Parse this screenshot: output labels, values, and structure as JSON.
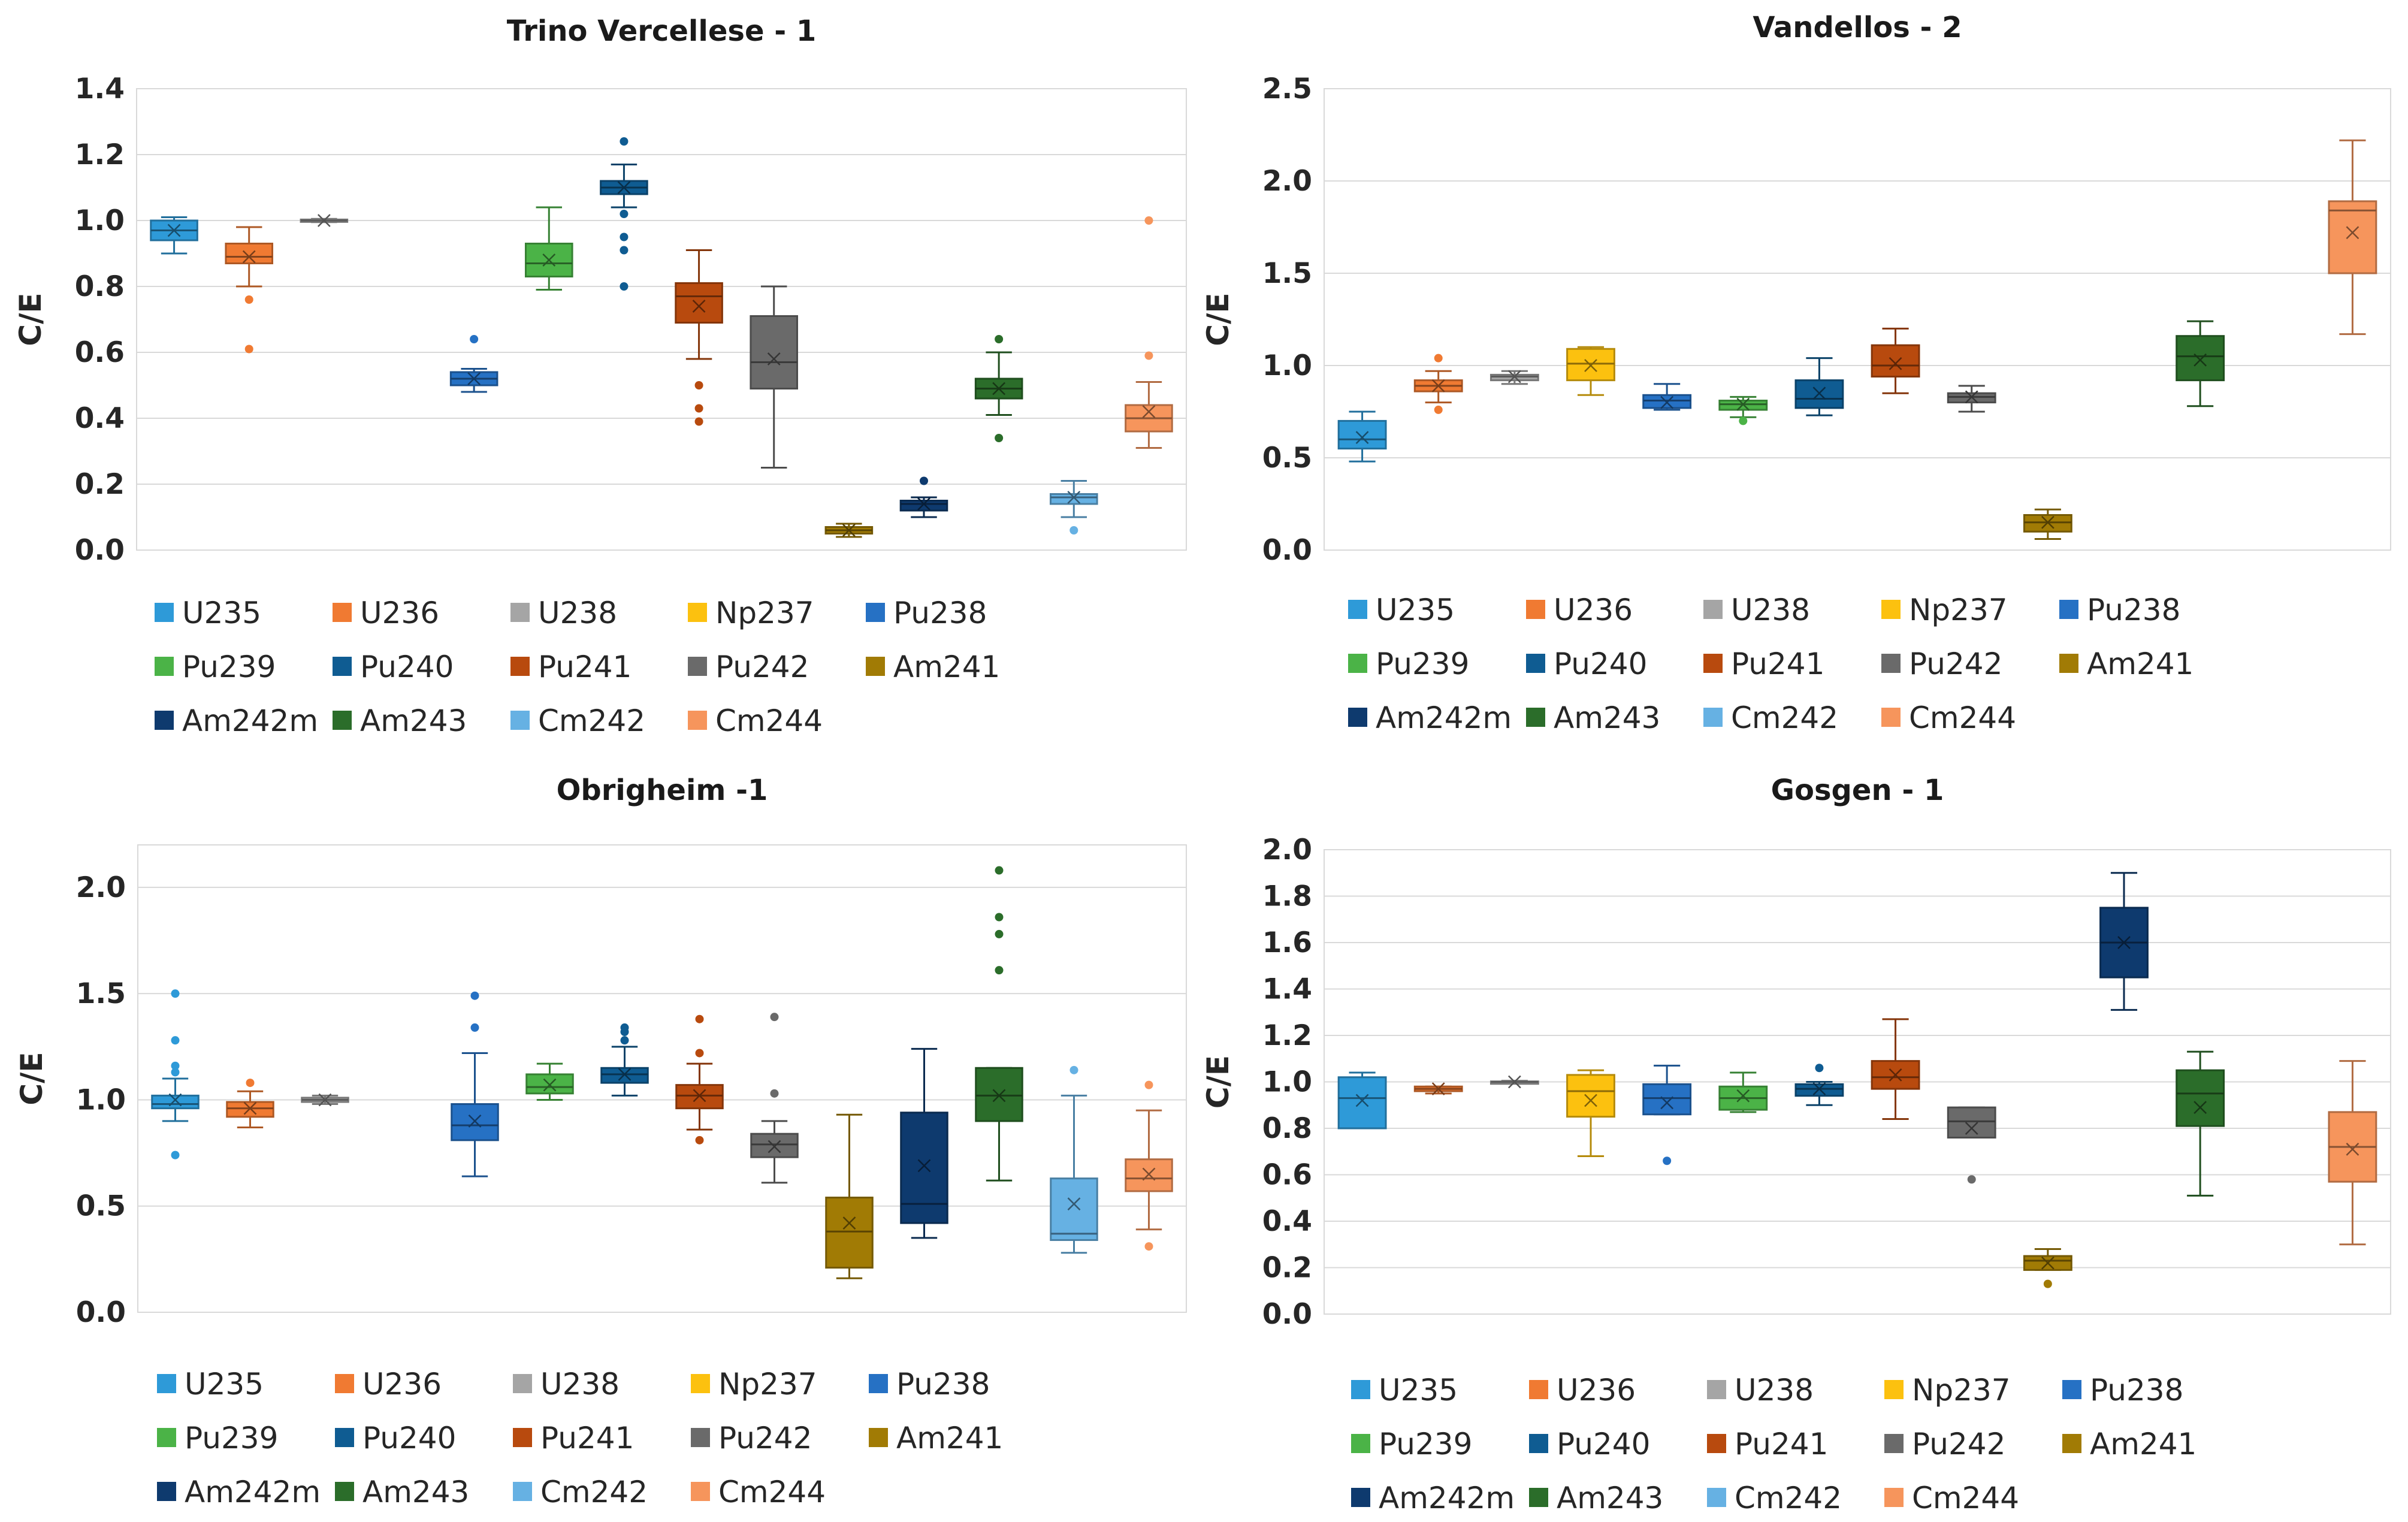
{
  "colors": {
    "U235": "#2e9ad8",
    "U236": "#f07a32",
    "U238": "#a5a5a5",
    "Np237": "#fcc10f",
    "Pu238": "#2671c4",
    "Pu239": "#4bb347",
    "Pu240": "#0f5c92",
    "Pu241": "#b84a0e",
    "Pu242": "#6a6a6a",
    "Am241": "#a17b05",
    "Am242m": "#0e3a6e",
    "Am243": "#2b6d2a",
    "Cm242": "#66b1e3",
    "Cm244": "#f6955c"
  },
  "chart_data": [
    {
      "type": "box",
      "title": "Trino Vercellese - 1",
      "ylabel": "C/E",
      "ylim": [
        0,
        1.4
      ],
      "yticks": [
        "0.0",
        "0.2",
        "0.4",
        "0.6",
        "0.8",
        "1.0",
        "1.2",
        "1.4"
      ],
      "tickvals": [
        0,
        0.2,
        0.4,
        0.6,
        0.8,
        1.0,
        1.2,
        1.4
      ],
      "categories": [
        "U235",
        "U236",
        "U238",
        "Np237",
        "Pu238",
        "Pu239",
        "Pu240",
        "Pu241",
        "Pu242",
        "Am241",
        "Am242m",
        "Am243",
        "Cm242",
        "Cm244"
      ],
      "legend": [
        "U235",
        "U236",
        "U238",
        "Np237",
        "Pu238",
        "Pu239",
        "Pu240",
        "Pu241",
        "Pu242",
        "Am241",
        "Am242m",
        "Am243",
        "Cm242",
        "Cm244"
      ],
      "boxes": [
        {
          "name": "U235",
          "min": 0.9,
          "q1": 0.94,
          "median": 0.97,
          "q3": 1.0,
          "max": 1.01,
          "mean": 0.97,
          "outliers": []
        },
        {
          "name": "U236",
          "min": 0.8,
          "q1": 0.87,
          "median": 0.89,
          "q3": 0.93,
          "max": 0.98,
          "mean": 0.89,
          "outliers": [
            0.76,
            0.61
          ]
        },
        {
          "name": "U238",
          "min": 0.995,
          "q1": 0.997,
          "median": 1.0,
          "q3": 1.003,
          "max": 1.005,
          "mean": 1.0,
          "outliers": []
        },
        null,
        {
          "name": "Pu238",
          "min": 0.48,
          "q1": 0.5,
          "median": 0.52,
          "q3": 0.54,
          "max": 0.55,
          "mean": 0.52,
          "outliers": [
            0.64
          ]
        },
        {
          "name": "Pu239",
          "min": 0.79,
          "q1": 0.83,
          "median": 0.87,
          "q3": 0.93,
          "max": 1.04,
          "mean": 0.88,
          "outliers": []
        },
        {
          "name": "Pu240",
          "min": 1.04,
          "q1": 1.08,
          "median": 1.1,
          "q3": 1.12,
          "max": 1.17,
          "mean": 1.1,
          "outliers": [
            1.24,
            0.95,
            0.91,
            1.02,
            0.8
          ]
        },
        {
          "name": "Pu241",
          "min": 0.58,
          "q1": 0.69,
          "median": 0.77,
          "q3": 0.81,
          "max": 0.91,
          "mean": 0.74,
          "outliers": [
            0.5,
            0.43,
            0.39
          ]
        },
        {
          "name": "Pu242",
          "min": 0.25,
          "q1": 0.49,
          "median": 0.57,
          "q3": 0.71,
          "max": 0.8,
          "mean": 0.58,
          "outliers": []
        },
        {
          "name": "Am241",
          "min": 0.04,
          "q1": 0.05,
          "median": 0.06,
          "q3": 0.07,
          "max": 0.08,
          "mean": 0.06,
          "outliers": []
        },
        {
          "name": "Am242m",
          "min": 0.1,
          "q1": 0.12,
          "median": 0.14,
          "q3": 0.15,
          "max": 0.16,
          "mean": 0.14,
          "outliers": [
            0.21
          ]
        },
        {
          "name": "Am243",
          "min": 0.41,
          "q1": 0.46,
          "median": 0.49,
          "q3": 0.52,
          "max": 0.6,
          "mean": 0.49,
          "outliers": [
            0.64,
            0.34
          ]
        },
        {
          "name": "Cm242",
          "min": 0.1,
          "q1": 0.14,
          "median": 0.16,
          "q3": 0.17,
          "max": 0.21,
          "mean": 0.16,
          "outliers": [
            0.06
          ]
        },
        {
          "name": "Cm244",
          "min": 0.31,
          "q1": 0.36,
          "median": 0.4,
          "q3": 0.44,
          "max": 0.51,
          "mean": 0.42,
          "outliers": [
            0.59,
            1.0
          ]
        }
      ]
    },
    {
      "type": "box",
      "title": "Vandellos - 2",
      "ylabel": "C/E",
      "ylim": [
        0,
        2.5
      ],
      "yticks": [
        "0.0",
        "0.5",
        "1.0",
        "1.5",
        "2.0",
        "2.5"
      ],
      "tickvals": [
        0,
        0.5,
        1.0,
        1.5,
        2.0,
        2.5
      ],
      "categories": [
        "U235",
        "U236",
        "U238",
        "Np237",
        "Pu238",
        "Pu239",
        "Pu240",
        "Pu241",
        "Pu242",
        "Am241",
        "Am242m",
        "Am243",
        "Cm242",
        "Cm244"
      ],
      "legend": [
        "U235",
        "U236",
        "U238",
        "Np237",
        "Pu238",
        "Pu239",
        "Pu240",
        "Pu241",
        "Pu242",
        "Am241",
        "Am242m",
        "Am243",
        "Cm242",
        "Cm244"
      ],
      "boxes": [
        {
          "name": "U235",
          "min": 0.48,
          "q1": 0.55,
          "median": 0.6,
          "q3": 0.7,
          "max": 0.75,
          "mean": 0.61,
          "outliers": []
        },
        {
          "name": "U236",
          "min": 0.8,
          "q1": 0.86,
          "median": 0.89,
          "q3": 0.92,
          "max": 0.97,
          "mean": 0.89,
          "outliers": [
            0.76,
            1.04
          ]
        },
        {
          "name": "U238",
          "min": 0.9,
          "q1": 0.92,
          "median": 0.94,
          "q3": 0.95,
          "max": 0.97,
          "mean": 0.94,
          "outliers": []
        },
        {
          "name": "Np237",
          "min": 0.84,
          "q1": 0.92,
          "median": 1.01,
          "q3": 1.09,
          "max": 1.1,
          "mean": 1.0,
          "outliers": []
        },
        {
          "name": "Pu238",
          "min": 0.76,
          "q1": 0.77,
          "median": 0.81,
          "q3": 0.84,
          "max": 0.9,
          "mean": 0.8,
          "outliers": []
        },
        {
          "name": "Pu239",
          "min": 0.72,
          "q1": 0.76,
          "median": 0.79,
          "q3": 0.81,
          "max": 0.83,
          "mean": 0.79,
          "outliers": [
            0.7
          ]
        },
        {
          "name": "Pu240",
          "min": 0.73,
          "q1": 0.77,
          "median": 0.82,
          "q3": 0.92,
          "max": 1.04,
          "mean": 0.85,
          "outliers": []
        },
        {
          "name": "Pu241",
          "min": 0.85,
          "q1": 0.94,
          "median": 1.0,
          "q3": 1.11,
          "max": 1.2,
          "mean": 1.01,
          "outliers": []
        },
        {
          "name": "Pu242",
          "min": 0.75,
          "q1": 0.8,
          "median": 0.83,
          "q3": 0.85,
          "max": 0.89,
          "mean": 0.83,
          "outliers": []
        },
        {
          "name": "Am241",
          "min": 0.06,
          "q1": 0.1,
          "median": 0.15,
          "q3": 0.19,
          "max": 0.22,
          "mean": 0.15,
          "outliers": []
        },
        null,
        {
          "name": "Am243",
          "min": 0.78,
          "q1": 0.92,
          "median": 1.05,
          "q3": 1.16,
          "max": 1.24,
          "mean": 1.03,
          "outliers": []
        },
        null,
        {
          "name": "Cm244",
          "min": 1.17,
          "q1": 1.5,
          "median": 1.84,
          "q3": 1.89,
          "max": 2.22,
          "mean": 1.72,
          "outliers": []
        }
      ]
    },
    {
      "type": "box",
      "title": "Obrigheim -1",
      "ylabel": "C/E",
      "ylim": [
        0,
        2.2
      ],
      "yticks": [
        "0.0",
        "0.5",
        "1.0",
        "1.5",
        "2.0"
      ],
      "tickvals": [
        0,
        0.5,
        1.0,
        1.5,
        2.0
      ],
      "categories": [
        "U235",
        "U236",
        "U238",
        "Np237",
        "Pu238",
        "Pu239",
        "Pu240",
        "Pu241",
        "Pu242",
        "Am241",
        "Am242m",
        "Am243",
        "Cm242",
        "Cm244"
      ],
      "legend": [
        "U235",
        "U236",
        "U238",
        "Np237",
        "Pu238",
        "Pu239",
        "Pu240",
        "Pu241",
        "Pu242",
        "Am241",
        "Am242m",
        "Am243",
        "Cm242",
        "Cm244"
      ],
      "boxes": [
        {
          "name": "U235",
          "min": 0.9,
          "q1": 0.96,
          "median": 0.98,
          "q3": 1.02,
          "max": 1.1,
          "mean": 1.0,
          "outliers": [
            1.5,
            1.28,
            1.16,
            1.13,
            0.74
          ]
        },
        {
          "name": "U236",
          "min": 0.87,
          "q1": 0.92,
          "median": 0.96,
          "q3": 0.99,
          "max": 1.04,
          "mean": 0.96,
          "outliers": [
            1.08
          ]
        },
        {
          "name": "U238",
          "min": 0.98,
          "q1": 0.99,
          "median": 1.0,
          "q3": 1.01,
          "max": 1.02,
          "mean": 1.0,
          "outliers": []
        },
        null,
        {
          "name": "Pu238",
          "min": 0.64,
          "q1": 0.81,
          "median": 0.88,
          "q3": 0.98,
          "max": 1.22,
          "mean": 0.9,
          "outliers": [
            1.49,
            1.34
          ]
        },
        {
          "name": "Pu239",
          "min": 1.0,
          "q1": 1.03,
          "median": 1.06,
          "q3": 1.12,
          "max": 1.17,
          "mean": 1.07,
          "outliers": []
        },
        {
          "name": "Pu240",
          "min": 1.02,
          "q1": 1.08,
          "median": 1.12,
          "q3": 1.15,
          "max": 1.25,
          "mean": 1.12,
          "outliers": [
            1.34,
            1.32,
            1.28
          ]
        },
        {
          "name": "Pu241",
          "min": 0.86,
          "q1": 0.96,
          "median": 1.02,
          "q3": 1.07,
          "max": 1.17,
          "mean": 1.02,
          "outliers": [
            1.38,
            1.22,
            0.81
          ]
        },
        {
          "name": "Pu242",
          "min": 0.61,
          "q1": 0.73,
          "median": 0.79,
          "q3": 0.84,
          "max": 0.9,
          "mean": 0.78,
          "outliers": [
            1.39,
            1.03
          ]
        },
        {
          "name": "Am241",
          "min": 0.16,
          "q1": 0.21,
          "median": 0.38,
          "q3": 0.54,
          "max": 0.93,
          "mean": 0.42,
          "outliers": []
        },
        {
          "name": "Am242m",
          "min": 0.35,
          "q1": 0.42,
          "median": 0.51,
          "q3": 0.94,
          "max": 1.24,
          "mean": 0.69,
          "outliers": []
        },
        {
          "name": "Am243",
          "min": 0.62,
          "q1": 0.9,
          "median": 1.02,
          "q3": 1.15,
          "max": 1.15,
          "mean": 1.02,
          "outliers": [
            2.08,
            1.86,
            1.78,
            1.61
          ]
        },
        {
          "name": "Cm242",
          "min": 0.28,
          "q1": 0.34,
          "median": 0.37,
          "q3": 0.63,
          "max": 1.02,
          "mean": 0.51,
          "outliers": [
            1.14
          ]
        },
        {
          "name": "Cm244",
          "min": 0.39,
          "q1": 0.57,
          "median": 0.63,
          "q3": 0.72,
          "max": 0.95,
          "mean": 0.65,
          "outliers": [
            1.07,
            0.31
          ]
        }
      ]
    },
    {
      "type": "box",
      "title": "Gosgen - 1",
      "ylabel": "C/E",
      "ylim": [
        0,
        2.0
      ],
      "yticks": [
        "0.0",
        "0.2",
        "0.4",
        "0.6",
        "0.8",
        "1.0",
        "1.2",
        "1.4",
        "1.6",
        "1.8",
        "2.0"
      ],
      "tickvals": [
        0,
        0.2,
        0.4,
        0.6,
        0.8,
        1.0,
        1.2,
        1.4,
        1.6,
        1.8,
        2.0
      ],
      "categories": [
        "U235",
        "U236",
        "U238",
        "Np237",
        "Pu238",
        "Pu239",
        "Pu240",
        "Pu241",
        "Pu242",
        "Am241",
        "Am242m",
        "Am243",
        "Cm242",
        "Cm244"
      ],
      "legend": [
        "U235",
        "U236",
        "U238",
        "Np237",
        "Pu238",
        "Pu239",
        "Pu240",
        "Pu241",
        "Pu242",
        "Am241",
        "Am242m",
        "Am243",
        "Cm242",
        "Cm244"
      ],
      "boxes": [
        {
          "name": "U235",
          "min": 0.8,
          "q1": 0.8,
          "median": 0.93,
          "q3": 1.02,
          "max": 1.04,
          "mean": 0.92,
          "outliers": []
        },
        {
          "name": "U236",
          "min": 0.95,
          "q1": 0.96,
          "median": 0.97,
          "q3": 0.98,
          "max": 0.98,
          "mean": 0.97,
          "outliers": []
        },
        {
          "name": "U238",
          "min": 0.995,
          "q1": 0.998,
          "median": 1.0,
          "q3": 1.002,
          "max": 1.005,
          "mean": 1.0,
          "outliers": []
        },
        {
          "name": "Np237",
          "min": 0.68,
          "q1": 0.85,
          "median": 0.96,
          "q3": 1.03,
          "max": 1.05,
          "mean": 0.92,
          "outliers": []
        },
        {
          "name": "Pu238",
          "min": 0.86,
          "q1": 0.86,
          "median": 0.93,
          "q3": 0.99,
          "max": 1.07,
          "mean": 0.91,
          "outliers": [
            0.66
          ]
        },
        {
          "name": "Pu239",
          "min": 0.87,
          "q1": 0.88,
          "median": 0.93,
          "q3": 0.98,
          "max": 1.04,
          "mean": 0.94,
          "outliers": []
        },
        {
          "name": "Pu240",
          "min": 0.9,
          "q1": 0.94,
          "median": 0.97,
          "q3": 0.99,
          "max": 1.0,
          "mean": 0.97,
          "outliers": [
            1.06
          ]
        },
        {
          "name": "Pu241",
          "min": 0.84,
          "q1": 0.97,
          "median": 1.02,
          "q3": 1.09,
          "max": 1.27,
          "mean": 1.03,
          "outliers": []
        },
        {
          "name": "Pu242",
          "min": 0.76,
          "q1": 0.76,
          "median": 0.83,
          "q3": 0.89,
          "max": 0.89,
          "mean": 0.8,
          "outliers": [
            0.58
          ]
        },
        {
          "name": "Am241",
          "min": 0.19,
          "q1": 0.19,
          "median": 0.23,
          "q3": 0.25,
          "max": 0.28,
          "mean": 0.22,
          "outliers": [
            0.13
          ]
        },
        {
          "name": "Am242m",
          "min": 1.31,
          "q1": 1.45,
          "median": 1.6,
          "q3": 1.75,
          "max": 1.9,
          "mean": 1.6,
          "outliers": []
        },
        {
          "name": "Am243",
          "min": 0.51,
          "q1": 0.81,
          "median": 0.95,
          "q3": 1.05,
          "max": 1.13,
          "mean": 0.89,
          "outliers": []
        },
        null,
        {
          "name": "Cm244",
          "min": 0.3,
          "q1": 0.57,
          "median": 0.72,
          "q3": 0.87,
          "max": 1.09,
          "mean": 0.71,
          "outliers": []
        }
      ]
    }
  ]
}
